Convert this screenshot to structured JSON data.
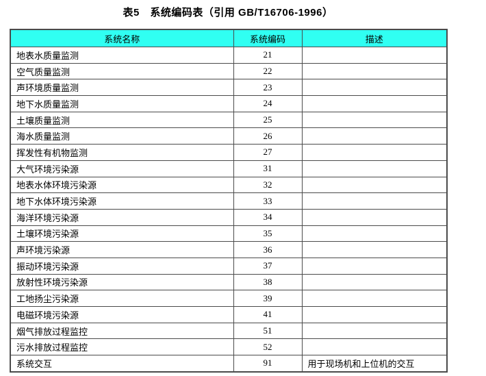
{
  "title": "表5　系统编码表（引用 GB/T16706-1996）",
  "colors": {
    "header_bg": "#30fff2",
    "border": "#4a4a4a",
    "text": "#000000",
    "page_bg": "#ffffff"
  },
  "table": {
    "columns": [
      {
        "label": "系统名称"
      },
      {
        "label": "系统编码"
      },
      {
        "label": "描述"
      }
    ],
    "rows": [
      {
        "name": "地表水质量监测",
        "code": "21",
        "description": ""
      },
      {
        "name": "空气质量监测",
        "code": "22",
        "description": ""
      },
      {
        "name": "声环境质量监测",
        "code": "23",
        "description": ""
      },
      {
        "name": "地下水质量监测",
        "code": "24",
        "description": ""
      },
      {
        "name": "土壤质量监测",
        "code": "25",
        "description": ""
      },
      {
        "name": "海水质量监测",
        "code": "26",
        "description": ""
      },
      {
        "name": "挥发性有机物监测",
        "code": "27",
        "description": ""
      },
      {
        "name": "大气环境污染源",
        "code": "31",
        "description": ""
      },
      {
        "name": "地表水体环境污染源",
        "code": "32",
        "description": ""
      },
      {
        "name": "地下水体环境污染源",
        "code": "33",
        "description": ""
      },
      {
        "name": "海洋环境污染源",
        "code": "34",
        "description": ""
      },
      {
        "name": "土壤环境污染源",
        "code": "35",
        "description": ""
      },
      {
        "name": "声环境污染源",
        "code": "36",
        "description": ""
      },
      {
        "name": "振动环境污染源",
        "code": "37",
        "description": ""
      },
      {
        "name": "放射性环境污染源",
        "code": "38",
        "description": ""
      },
      {
        "name": "工地扬尘污染源",
        "code": "39",
        "description": ""
      },
      {
        "name": "电磁环境污染源",
        "code": "41",
        "description": ""
      },
      {
        "name": "烟气排放过程监控",
        "code": "51",
        "description": ""
      },
      {
        "name": "污水排放过程监控",
        "code": "52",
        "description": ""
      },
      {
        "name": "系统交互",
        "code": "91",
        "description": "用于现场机和上位机的交互"
      }
    ]
  }
}
